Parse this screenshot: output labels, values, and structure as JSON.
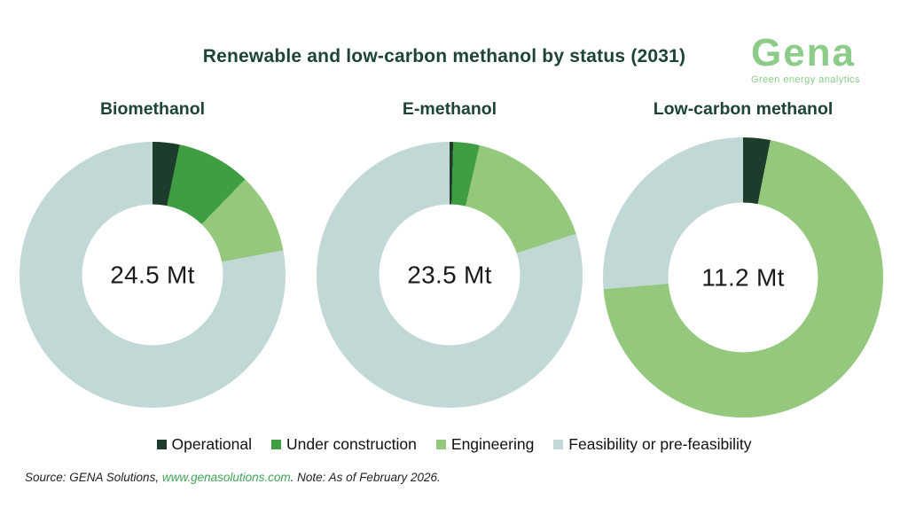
{
  "header": {
    "title": "Renewable and low-carbon methanol by status (2031)",
    "logo": {
      "name": "Gena",
      "tagline": "Green energy analytics",
      "color": "#8bcc88"
    }
  },
  "colors": {
    "title_green": "#1d4435",
    "operational": "#1e3c2b",
    "under_construction": "#3f9d42",
    "engineering": "#94c87c",
    "feasibility": "#c1d8d6",
    "link_green": "#42a558",
    "center_label_text": "#1a1a1a"
  },
  "chart_data": {
    "type": "pie",
    "variant": "donut",
    "title": "Renewable and low-carbon methanol by status (2031)",
    "unit": "Mt",
    "statuses": [
      "Operational",
      "Under construction",
      "Engineering",
      "Feasibility or pre-feasibility"
    ],
    "status_colors": [
      "#1e3c2b",
      "#3f9d42",
      "#94c87c",
      "#c1d8d6"
    ],
    "legend_position": "bottom",
    "charts": [
      {
        "title": "Biomethanol",
        "total_label": "24.5 Mt",
        "total_mt": 24.5,
        "values_mt": [
          0.8,
          2.2,
          2.4,
          19.1
        ],
        "percents": [
          3.3,
          9.0,
          9.9,
          77.8
        ]
      },
      {
        "title": "E-methanol",
        "total_label": "23.5 Mt",
        "total_mt": 23.5,
        "values_mt": [
          0.1,
          0.75,
          3.85,
          18.8
        ],
        "percents": [
          0.4,
          3.2,
          16.4,
          80.0
        ]
      },
      {
        "title": "Low-carbon methanol",
        "total_label": "11.2 Mt",
        "total_mt": 11.2,
        "values_mt": [
          0.35,
          0,
          7.9,
          2.95
        ],
        "percents": [
          3.1,
          0,
          70.6,
          26.3
        ]
      }
    ]
  },
  "footer": {
    "source_prefix": "Source: GENA Solutions, ",
    "source_link": "www.genasolutions.com",
    "source_suffix": ". Note: As of February 2026."
  }
}
